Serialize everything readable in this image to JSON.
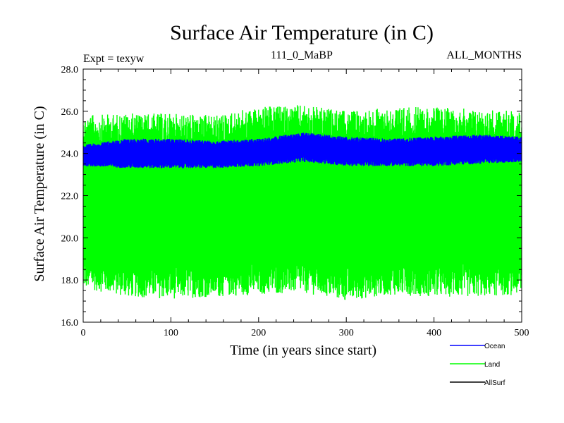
{
  "chart_data": {
    "type": "line",
    "title": "Surface Air Temperature (in C)",
    "subtitle_left": "Expt = texyw",
    "subtitle_center": "111_0_MaBP",
    "subtitle_right": "ALL_MONTHS",
    "xlabel": "Time (in years since start)",
    "ylabel": "Surface Air Temperature (in C)",
    "xlim": [
      0,
      500
    ],
    "ylim": [
      16.0,
      28.0
    ],
    "x_ticks": [
      "0",
      "100",
      "200",
      "300",
      "400",
      "500"
    ],
    "y_ticks": [
      "16.0",
      "18.0",
      "20.0",
      "22.0",
      "24.0",
      "26.0",
      "28.0"
    ],
    "grid": false,
    "legend_position": "bottom-right, outside plot",
    "series": [
      {
        "name": "Ocean",
        "color": "#0000ff",
        "mean": 23.9,
        "envelope_min": [
          23.4,
          23.3,
          23.3,
          23.3,
          23.4,
          23.6,
          23.4,
          23.4,
          23.4,
          23.5,
          23.6
        ],
        "envelope_max": [
          24.4,
          24.7,
          24.7,
          24.6,
          24.7,
          25.0,
          24.8,
          24.7,
          24.8,
          24.9,
          24.8
        ],
        "envelope_x": [
          0,
          50,
          100,
          150,
          200,
          250,
          300,
          350,
          400,
          450,
          500
        ]
      },
      {
        "name": "Land",
        "color": "#00ff00",
        "mean": 21.4,
        "envelope_min": [
          17.6,
          17.2,
          17.1,
          17.2,
          17.3,
          17.4,
          17.0,
          17.3,
          17.2,
          17.2,
          17.3
        ],
        "envelope_max": [
          25.8,
          25.9,
          25.9,
          25.8,
          26.2,
          26.3,
          26.0,
          26.2,
          26.2,
          26.1,
          26.0
        ],
        "envelope_x": [
          0,
          50,
          100,
          150,
          200,
          250,
          300,
          350,
          400,
          450,
          500
        ]
      },
      {
        "name": "AllSurf",
        "color": "#000000",
        "visible_in_plot": false
      }
    ]
  }
}
